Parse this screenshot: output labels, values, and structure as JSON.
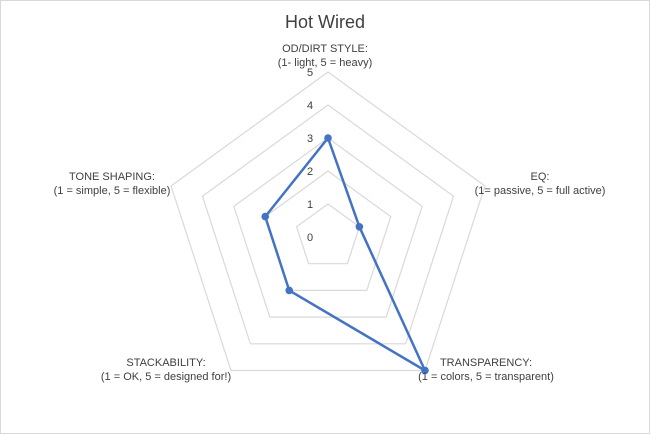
{
  "chart_data": {
    "type": "radar",
    "title": "Hot Wired",
    "rlim": [
      0,
      5
    ],
    "ticks": [
      "0",
      "1",
      "2",
      "3",
      "4",
      "5"
    ],
    "grid": true,
    "axes": [
      {
        "name": "OD/DIRT STYLE:",
        "sub": "(1- light, 5 = heavy)"
      },
      {
        "name": "EQ:",
        "sub": "(1= passive, 5 = full active)"
      },
      {
        "name": "TRANSPARENCY:",
        "sub": "(1 = colors, 5 = transparent)"
      },
      {
        "name": "STACKABILITY:",
        "sub": "(1 = OK, 5 = designed for!)"
      },
      {
        "name": "TONE SHAPING:",
        "sub": "(1 = simple, 5 = flexible)"
      }
    ],
    "series": [
      {
        "values": [
          3,
          1,
          5,
          2,
          2
        ],
        "color": "#4472c4"
      }
    ],
    "grid_color": "#d9d9d9"
  }
}
